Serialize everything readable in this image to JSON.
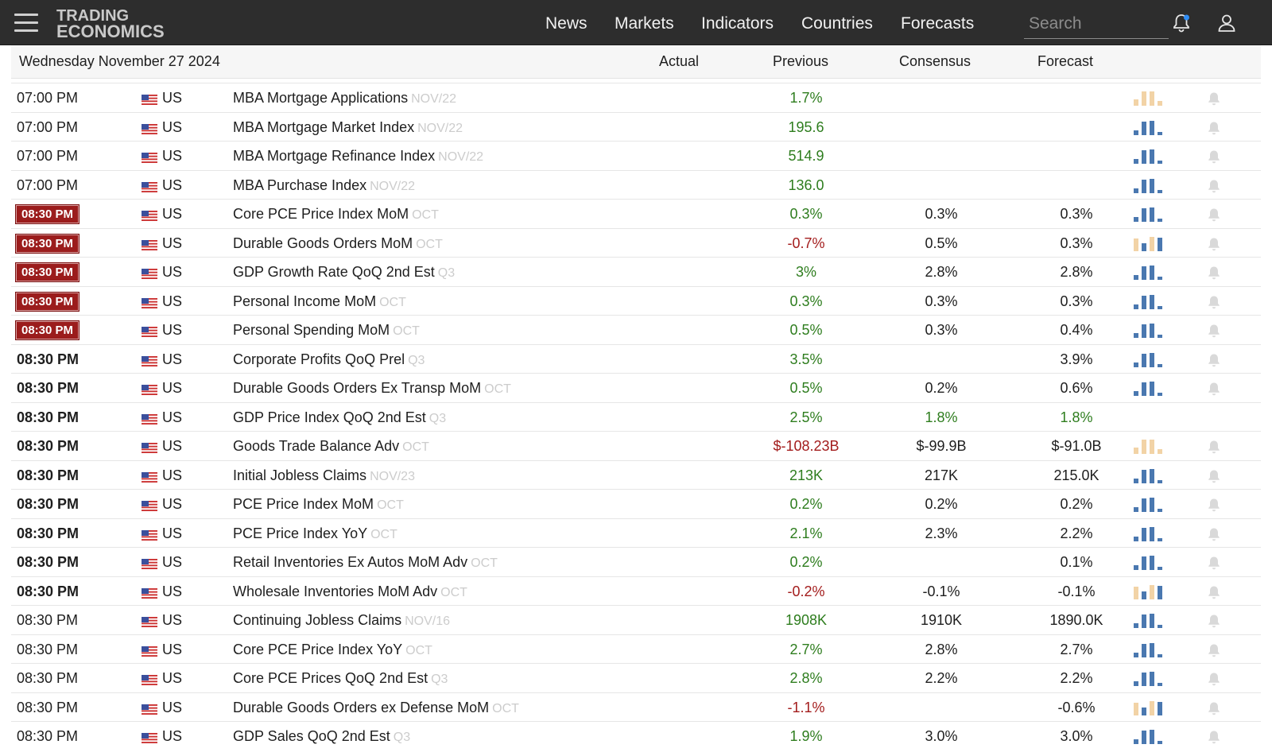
{
  "header": {
    "logo_line1": "TRADING",
    "logo_line2": "ECONOMICS",
    "nav": [
      "News",
      "Markets",
      "Indicators",
      "Countries",
      "Forecasts"
    ],
    "search_placeholder": "Search"
  },
  "colors": {
    "topbar": "#2d2d2d",
    "positive": "#2e7d1e",
    "negative": "#a31c1c",
    "badge": "#9b1c1c",
    "spark_blue": "#4a78b0",
    "spark_orange": "#f2d3a6"
  },
  "calendar": {
    "date": "Wednesday November 27 2024",
    "columns": {
      "actual": "Actual",
      "previous": "Previous",
      "consensus": "Consensus",
      "forecast": "Forecast"
    },
    "rows": [
      {
        "time": "07:00 PM",
        "style": "plain",
        "country": "US",
        "event": "MBA Mortgage Applications",
        "ref": "NOV/22",
        "previous": "1.7%",
        "prev_color": "pos",
        "consensus": "",
        "forecast": "",
        "spark": "orange"
      },
      {
        "time": "07:00 PM",
        "style": "plain",
        "country": "US",
        "event": "MBA Mortgage Market Index",
        "ref": "NOV/22",
        "previous": "195.6",
        "prev_color": "pos",
        "consensus": "",
        "forecast": "",
        "spark": "blue"
      },
      {
        "time": "07:00 PM",
        "style": "plain",
        "country": "US",
        "event": "MBA Mortgage Refinance Index",
        "ref": "NOV/22",
        "previous": "514.9",
        "prev_color": "pos",
        "consensus": "",
        "forecast": "",
        "spark": "blue"
      },
      {
        "time": "07:00 PM",
        "style": "plain",
        "country": "US",
        "event": "MBA Purchase Index",
        "ref": "NOV/22",
        "previous": "136.0",
        "prev_color": "pos",
        "consensus": "",
        "forecast": "",
        "spark": "blue"
      },
      {
        "time": "08:30 PM",
        "style": "badge",
        "country": "US",
        "event": "Core PCE Price Index MoM",
        "ref": "OCT",
        "previous": "0.3%",
        "prev_color": "pos",
        "consensus": "0.3%",
        "forecast": "0.3%",
        "spark": "blue"
      },
      {
        "time": "08:30 PM",
        "style": "badge",
        "country": "US",
        "event": "Durable Goods Orders MoM",
        "ref": "OCT",
        "previous": "-0.7%",
        "prev_color": "neg",
        "consensus": "0.5%",
        "forecast": "0.3%",
        "spark": "mixed"
      },
      {
        "time": "08:30 PM",
        "style": "badge",
        "country": "US",
        "event": "GDP Growth Rate QoQ 2nd Est",
        "ref": "Q3",
        "previous": "3%",
        "prev_color": "pos",
        "consensus": "2.8%",
        "forecast": "2.8%",
        "spark": "blue"
      },
      {
        "time": "08:30 PM",
        "style": "badge",
        "country": "US",
        "event": "Personal Income MoM",
        "ref": "OCT",
        "previous": "0.3%",
        "prev_color": "pos",
        "consensus": "0.3%",
        "forecast": "0.3%",
        "spark": "blue"
      },
      {
        "time": "08:30 PM",
        "style": "badge",
        "country": "US",
        "event": "Personal Spending MoM",
        "ref": "OCT",
        "previous": "0.5%",
        "prev_color": "pos",
        "consensus": "0.3%",
        "forecast": "0.4%",
        "spark": "blue"
      },
      {
        "time": "08:30 PM",
        "style": "bold",
        "country": "US",
        "event": "Corporate Profits QoQ Prel",
        "ref": "Q3",
        "previous": "3.5%",
        "prev_color": "pos",
        "consensus": "",
        "forecast": "3.9%",
        "spark": "blue"
      },
      {
        "time": "08:30 PM",
        "style": "bold",
        "country": "US",
        "event": "Durable Goods Orders Ex Transp MoM",
        "ref": "OCT",
        "previous": "0.5%",
        "prev_color": "pos",
        "consensus": "0.2%",
        "forecast": "0.6%",
        "spark": "blue"
      },
      {
        "time": "08:30 PM",
        "style": "bold",
        "country": "US",
        "event": "GDP Price Index QoQ 2nd Est",
        "ref": "Q3",
        "previous": "2.5%",
        "prev_color": "pos",
        "consensus": "1.8%",
        "cons_color": "pos",
        "forecast": "1.8%",
        "fore_color": "pos",
        "spark": "none"
      },
      {
        "time": "08:30 PM",
        "style": "bold",
        "country": "US",
        "event": "Goods Trade Balance Adv",
        "ref": "OCT",
        "previous": "$-108.23B",
        "prev_color": "neg",
        "consensus": "$-99.9B",
        "forecast": "$-91.0B",
        "spark": "orange"
      },
      {
        "time": "08:30 PM",
        "style": "bold",
        "country": "US",
        "event": "Initial Jobless Claims",
        "ref": "NOV/23",
        "previous": "213K",
        "prev_color": "pos",
        "consensus": "217K",
        "forecast": "215.0K",
        "spark": "blue"
      },
      {
        "time": "08:30 PM",
        "style": "bold",
        "country": "US",
        "event": "PCE Price Index MoM",
        "ref": "OCT",
        "previous": "0.2%",
        "prev_color": "pos",
        "consensus": "0.2%",
        "forecast": "0.2%",
        "spark": "blue"
      },
      {
        "time": "08:30 PM",
        "style": "bold",
        "country": "US",
        "event": "PCE Price Index YoY",
        "ref": "OCT",
        "previous": "2.1%",
        "prev_color": "pos",
        "consensus": "2.3%",
        "forecast": "2.2%",
        "spark": "blue"
      },
      {
        "time": "08:30 PM",
        "style": "bold",
        "country": "US",
        "event": "Retail Inventories Ex Autos MoM Adv",
        "ref": "OCT",
        "previous": "0.2%",
        "prev_color": "pos",
        "consensus": "",
        "forecast": "0.1%",
        "spark": "blue"
      },
      {
        "time": "08:30 PM",
        "style": "bold",
        "country": "US",
        "event": "Wholesale Inventories MoM Adv",
        "ref": "OCT",
        "previous": "-0.2%",
        "prev_color": "neg",
        "consensus": "-0.1%",
        "forecast": "-0.1%",
        "spark": "mixed"
      },
      {
        "time": "08:30 PM",
        "style": "plain",
        "country": "US",
        "event": "Continuing Jobless Claims",
        "ref": "NOV/16",
        "previous": "1908K",
        "prev_color": "pos",
        "consensus": "1910K",
        "forecast": "1890.0K",
        "spark": "blue"
      },
      {
        "time": "08:30 PM",
        "style": "plain",
        "country": "US",
        "event": "Core PCE Price Index YoY",
        "ref": "OCT",
        "previous": "2.7%",
        "prev_color": "pos",
        "consensus": "2.8%",
        "forecast": "2.7%",
        "spark": "blue"
      },
      {
        "time": "08:30 PM",
        "style": "plain",
        "country": "US",
        "event": "Core PCE Prices QoQ 2nd Est",
        "ref": "Q3",
        "previous": "2.8%",
        "prev_color": "pos",
        "consensus": "2.2%",
        "forecast": "2.2%",
        "spark": "blue"
      },
      {
        "time": "08:30 PM",
        "style": "plain",
        "country": "US",
        "event": "Durable Goods Orders ex Defense MoM",
        "ref": "OCT",
        "previous": "-1.1%",
        "prev_color": "neg",
        "consensus": "",
        "forecast": "-0.6%",
        "spark": "mixed"
      },
      {
        "time": "08:30 PM",
        "style": "plain",
        "country": "US",
        "event": "GDP Sales QoQ 2nd Est",
        "ref": "Q3",
        "previous": "1.9%",
        "prev_color": "pos",
        "consensus": "3.0%",
        "forecast": "3.0%",
        "spark": "blue"
      }
    ]
  }
}
